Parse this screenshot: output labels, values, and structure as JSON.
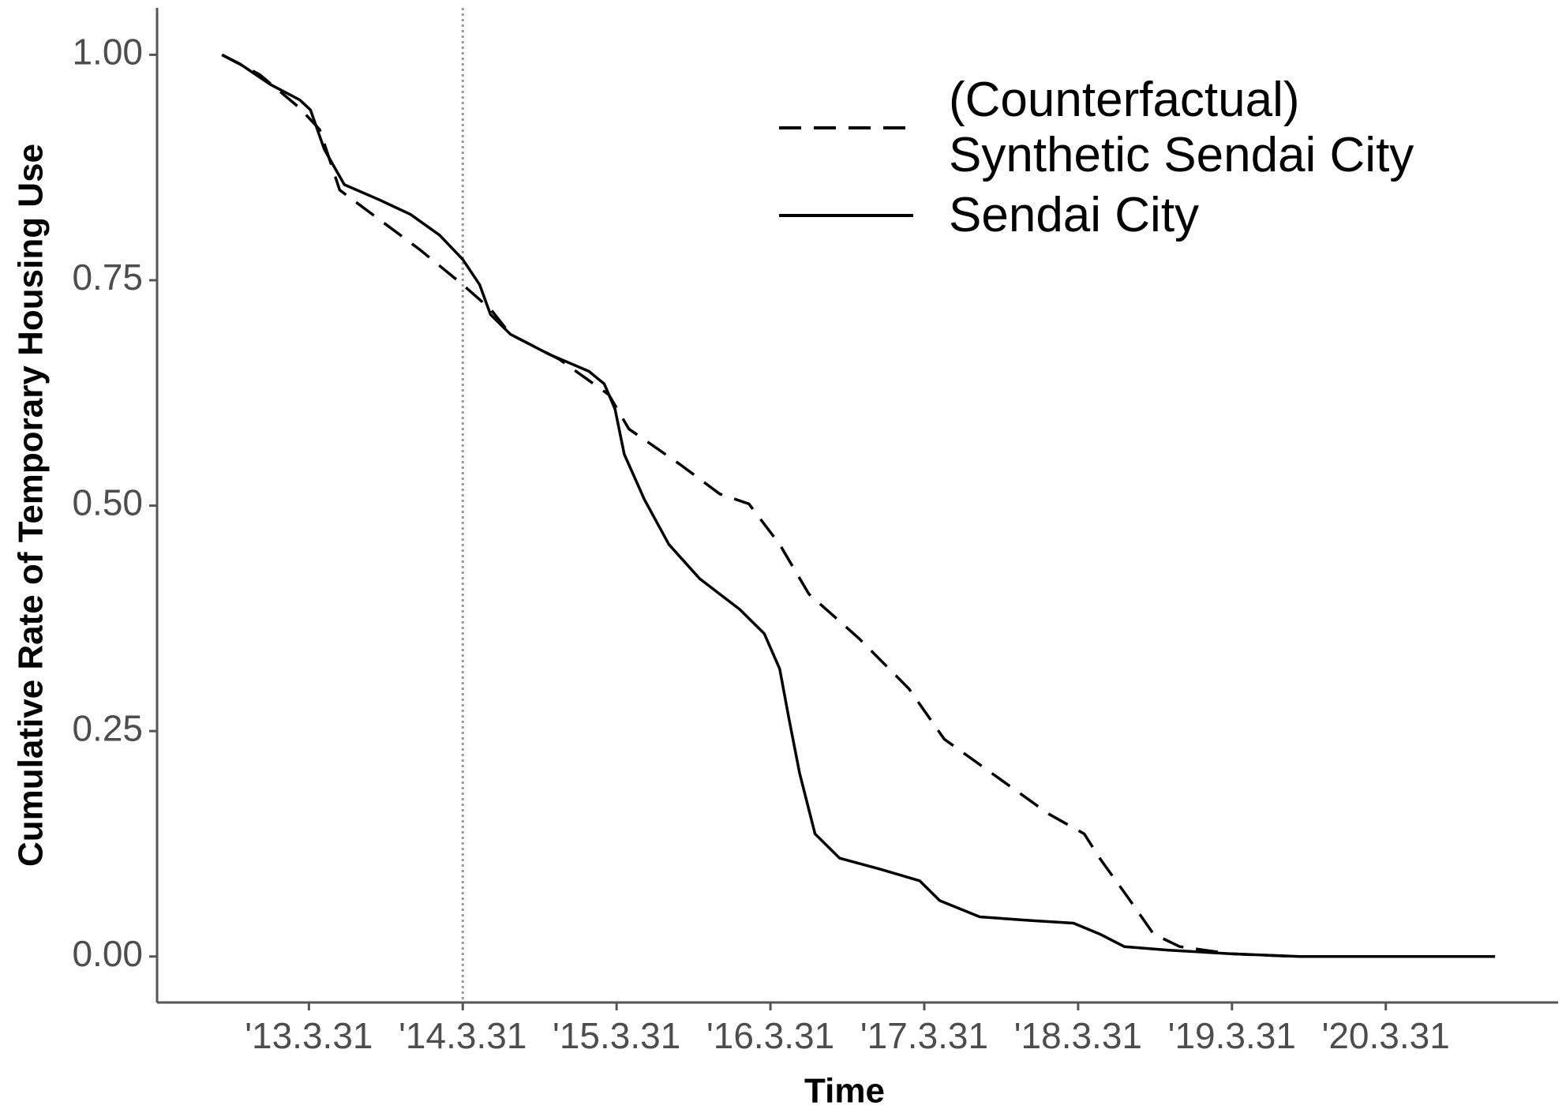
{
  "chart_data": {
    "type": "line",
    "x_label": "Time",
    "y_label": "Cumulative Rate of Temporary Housing Use",
    "xlim": [
      2012.263,
      2021.37
    ],
    "ylim": [
      -0.051,
      1.052
    ],
    "xticks": [
      {
        "value": 2013.25,
        "label": "'13.3.31"
      },
      {
        "value": 2014.25,
        "label": "'14.3.31"
      },
      {
        "value": 2015.25,
        "label": "'15.3.31"
      },
      {
        "value": 2016.25,
        "label": "'16.3.31"
      },
      {
        "value": 2017.25,
        "label": "'17.3.31"
      },
      {
        "value": 2018.25,
        "label": "'18.3.31"
      },
      {
        "value": 2019.25,
        "label": "'19.3.31"
      },
      {
        "value": 2020.25,
        "label": "'20.3.31"
      }
    ],
    "yticks": [
      {
        "value": 0,
        "label": "0.00"
      },
      {
        "value": 0.25,
        "label": "0.25"
      },
      {
        "value": 0.5,
        "label": "0.50"
      },
      {
        "value": 0.75,
        "label": "0.75"
      },
      {
        "value": 1,
        "label": "1.00"
      }
    ],
    "grid": false,
    "intervention_x": 2014.25,
    "legend_position": "top-right",
    "series": [
      {
        "name": "(Counterfactual) Synthetic Sendai City",
        "color": "#000000",
        "dash": true,
        "x": [
          2012.685,
          2012.93,
          2013.19,
          2013.32,
          2013.45,
          2013.71,
          2013.97,
          2014.25,
          2014.43,
          2014.56,
          2014.88,
          2015.2,
          2015.33,
          2015.66,
          2015.92,
          2016.11,
          2016.31,
          2016.5,
          2016.83,
          2017.15,
          2017.38,
          2017.74,
          2018.06,
          2018.29,
          2018.39,
          2018.58,
          2018.74,
          2018.91,
          2019.24,
          2019.66
        ],
        "values": [
          1.0,
          0.978,
          0.941,
          0.917,
          0.85,
          0.817,
          0.784,
          0.745,
          0.718,
          0.69,
          0.662,
          0.623,
          0.585,
          0.546,
          0.513,
          0.502,
          0.457,
          0.402,
          0.352,
          0.297,
          0.241,
          0.197,
          0.158,
          0.136,
          0.109,
          0.064,
          0.025,
          0.011,
          0.003,
          0.0
        ]
      },
      {
        "name": "Sendai City",
        "color": "#000000",
        "dash": false,
        "x": [
          2012.685,
          2012.8,
          2013.0,
          2013.19,
          2013.26,
          2013.35,
          2013.48,
          2013.71,
          2013.91,
          2014.1,
          2014.25,
          2014.36,
          2014.43,
          2014.56,
          2014.81,
          2015.07,
          2015.17,
          2015.24,
          2015.3,
          2015.43,
          2015.59,
          2015.79,
          2016.05,
          2016.21,
          2016.31,
          2016.37,
          2016.44,
          2016.54,
          2016.7,
          2016.96,
          2017.22,
          2017.35,
          2017.61,
          2017.93,
          2018.22,
          2018.39,
          2018.55,
          2018.84,
          2019.24,
          2019.69,
          2020.96
        ],
        "values": [
          1.0,
          0.99,
          0.967,
          0.95,
          0.939,
          0.895,
          0.856,
          0.839,
          0.823,
          0.8,
          0.773,
          0.745,
          0.712,
          0.69,
          0.668,
          0.649,
          0.635,
          0.607,
          0.557,
          0.507,
          0.457,
          0.419,
          0.385,
          0.358,
          0.319,
          0.264,
          0.203,
          0.136,
          0.109,
          0.097,
          0.084,
          0.062,
          0.044,
          0.04,
          0.037,
          0.025,
          0.011,
          0.007,
          0.003,
          0.0,
          0.0
        ]
      }
    ]
  }
}
